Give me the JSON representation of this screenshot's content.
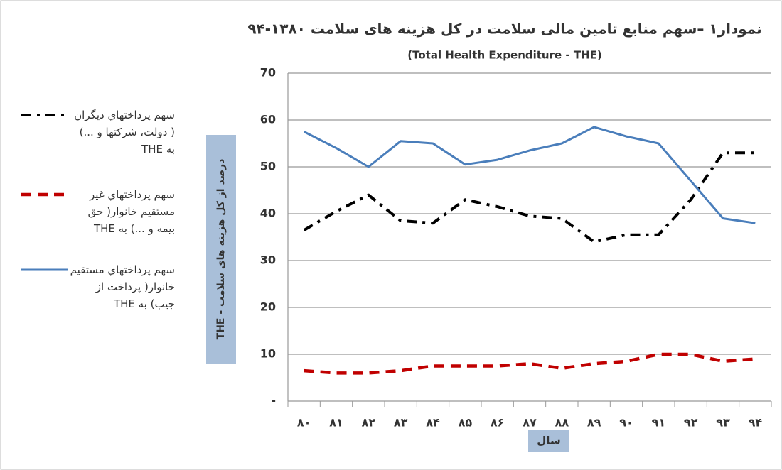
{
  "chart_data": {
    "type": "line",
    "title": "نمودار۱ –سهم منابع تامین مالی سلامت در کل هزینه های سلامت ۱۳۸۰-۹۴",
    "subtitle": "(Total Health Expenditure - THE)",
    "y_label": "درصد از کل هزینه های سلامت - THE",
    "x_label": "سال",
    "categories": [
      "۸۰",
      "۸۱",
      "۸۲",
      "۸۳",
      "۸۴",
      "۸۵",
      "۸۶",
      "۸۷",
      "۸۸",
      "۸۹",
      "۹۰",
      "۹۱",
      "۹۲",
      "۹۳",
      "۹۴"
    ],
    "series": [
      {
        "name": "سهم پرداختهاي ديگران ( دولت، شركتها و ...) به THE",
        "color": "#000000",
        "dash": "dash-dot",
        "values": [
          36.5,
          40.5,
          44,
          38.5,
          38,
          43,
          41.5,
          39.5,
          39,
          34,
          35.5,
          35.5,
          43,
          53,
          53
        ]
      },
      {
        "name": "سهم پرداختهاي غير مستقيم خانوار( حق بيمه و ...) به THE",
        "color": "#c00000",
        "dash": "dash",
        "values": [
          6.5,
          6,
          6,
          6.5,
          7.5,
          7.5,
          7.5,
          8,
          7,
          8,
          8.5,
          10,
          10,
          8.5,
          9
        ]
      },
      {
        "name": "سهم پرداختهاي مستقيم خانوار( پرداخت از جيب) به THE",
        "color": "#4a7ebb",
        "dash": "solid",
        "values": [
          57.5,
          54,
          50,
          55.5,
          55,
          50.5,
          51.5,
          53.5,
          55,
          58.5,
          56.5,
          55,
          47,
          39,
          38
        ]
      }
    ],
    "ylim": [
      0,
      70
    ],
    "yticks": [
      {
        "value": 0,
        "label": "-"
      },
      10,
      20,
      30,
      40,
      50,
      60,
      70
    ],
    "grid": true,
    "legend": "left"
  }
}
